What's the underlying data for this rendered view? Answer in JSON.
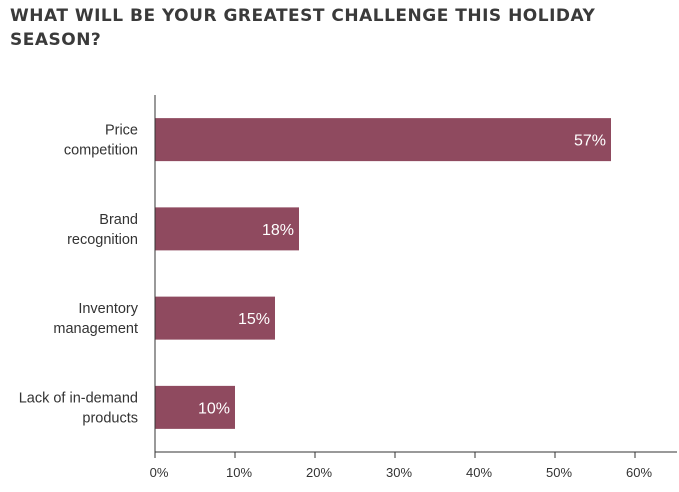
{
  "chart_data": {
    "type": "bar",
    "orientation": "horizontal",
    "title": "WHAT WILL BE YOUR GREATEST CHALLENGE THIS HOLIDAY SEASON?",
    "categories": [
      [
        "Price",
        "competition"
      ],
      [
        "Brand",
        "recognition"
      ],
      [
        "Inventory",
        "management"
      ],
      [
        "Lack of in-demand",
        "products"
      ]
    ],
    "values": [
      57,
      18,
      15,
      10
    ],
    "data_labels": [
      "57%",
      "18%",
      "15%",
      "10%"
    ],
    "xlim": [
      0,
      60
    ],
    "xticks": [
      0,
      10,
      20,
      30,
      40,
      50,
      60
    ],
    "xtick_labels": [
      "0%",
      "10%",
      "20%",
      "30%",
      "40%",
      "50%",
      "60%"
    ],
    "xlabel": "",
    "ylabel": "",
    "grid": false,
    "bar_color": "#8f4a5f",
    "axis_color": "#333333"
  }
}
